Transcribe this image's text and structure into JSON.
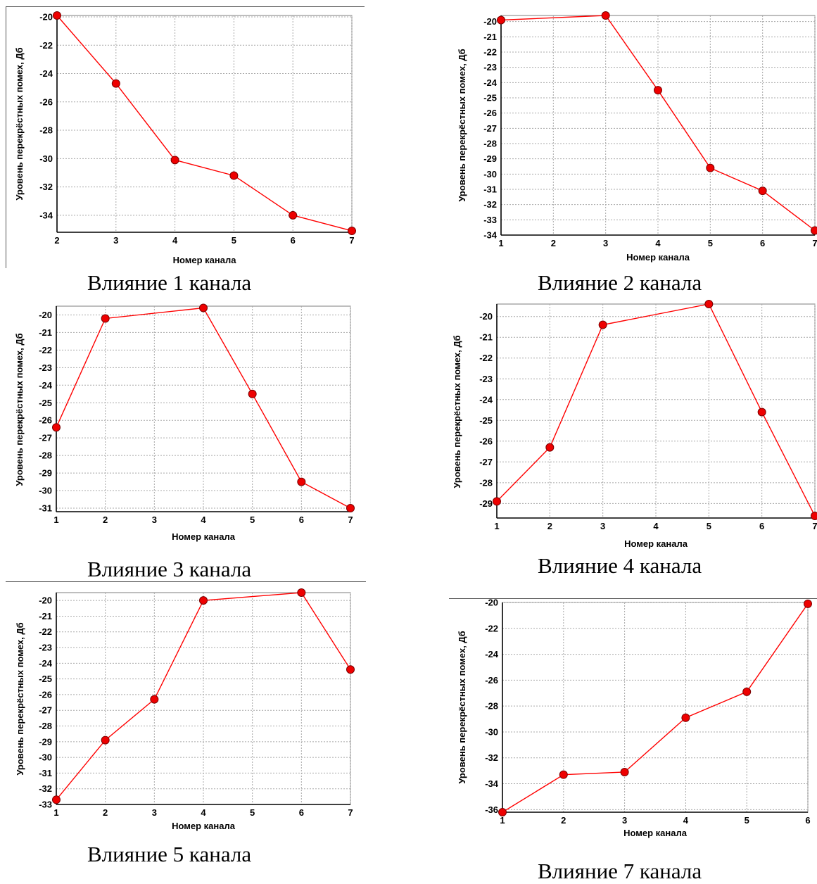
{
  "captions": [
    "Влияние 1 канала",
    "Влияние 2 канала",
    "Влияние 3 канала",
    "Влияние 4 канала",
    "Влияние 5 канала",
    "Влияние 7 канала"
  ],
  "chart_data": [
    {
      "type": "line",
      "xlabel": "Номер канала",
      "ylabel": "Уровень перекрёстных помех, Дб",
      "x": [
        2,
        3,
        4,
        5,
        6,
        7
      ],
      "series": [
        {
          "values": [
            -19.9,
            -24.7,
            -30.1,
            -31.2,
            -34.0,
            -35.1
          ]
        }
      ],
      "xlim": [
        2,
        7
      ],
      "ylim": [
        -35.2,
        -19.9
      ],
      "yticks": [
        -20,
        -22,
        -24,
        -26,
        -28,
        -30,
        -32,
        -34
      ],
      "xticks": [
        2,
        3,
        4,
        5,
        6,
        7
      ],
      "grid": true,
      "series_color": "#ff0000"
    },
    {
      "type": "line",
      "xlabel": "Номер канала",
      "ylabel": "Уровень перекрёстных помех, Дб",
      "x": [
        1,
        3,
        4,
        5,
        6,
        7
      ],
      "series": [
        {
          "values": [
            -19.9,
            -19.6,
            -24.5,
            -29.6,
            -31.1,
            -33.7
          ]
        }
      ],
      "xlim": [
        1,
        7
      ],
      "ylim": [
        -34.0,
        -19.6
      ],
      "yticks": [
        -20,
        -21,
        -22,
        -23,
        -24,
        -25,
        -26,
        -27,
        -28,
        -29,
        -30,
        -31,
        -32,
        -33,
        -34
      ],
      "xticks": [
        1,
        2,
        3,
        4,
        5,
        6,
        7
      ],
      "grid": true,
      "series_color": "#ff0000"
    },
    {
      "type": "line",
      "xlabel": "Номер канала",
      "ylabel": "Уровень перекрёстных помех, Дб",
      "x": [
        1,
        2,
        4,
        5,
        6,
        7
      ],
      "series": [
        {
          "values": [
            -26.4,
            -20.2,
            -19.6,
            -24.5,
            -29.5,
            -31.0
          ]
        }
      ],
      "xlim": [
        1,
        7
      ],
      "ylim": [
        -31.2,
        -19.5
      ],
      "yticks": [
        -20,
        -21,
        -22,
        -23,
        -24,
        -25,
        -26,
        -27,
        -28,
        -29,
        -30,
        -31
      ],
      "xticks": [
        1,
        2,
        3,
        4,
        5,
        6,
        7
      ],
      "grid": true,
      "series_color": "#ff0000"
    },
    {
      "type": "line",
      "xlabel": "Номер канала",
      "ylabel": "Уровень перекрёстных помех, Дб",
      "x": [
        1,
        2,
        3,
        5,
        6,
        7
      ],
      "series": [
        {
          "values": [
            -28.9,
            -26.3,
            -20.4,
            -19.4,
            -24.6,
            -29.6
          ]
        }
      ],
      "xlim": [
        1,
        7
      ],
      "ylim": [
        -29.7,
        -19.4
      ],
      "yticks": [
        -20,
        -21,
        -22,
        -23,
        -24,
        -25,
        -26,
        -27,
        -28,
        -29
      ],
      "xticks": [
        1,
        2,
        3,
        4,
        5,
        6,
        7
      ],
      "grid": true,
      "series_color": "#ff0000"
    },
    {
      "type": "line",
      "xlabel": "Номер канала",
      "ylabel": "Уровень перекрёстных помех, Дб",
      "x": [
        1,
        2,
        3,
        4,
        6,
        7
      ],
      "series": [
        {
          "values": [
            -32.7,
            -28.9,
            -26.3,
            -20.0,
            -19.5,
            -24.4
          ]
        }
      ],
      "xlim": [
        1,
        7
      ],
      "ylim": [
        -33.0,
        -19.5
      ],
      "yticks": [
        -20,
        -21,
        -22,
        -23,
        -24,
        -25,
        -26,
        -27,
        -28,
        -29,
        -30,
        -31,
        -32,
        -33
      ],
      "xticks": [
        1,
        2,
        3,
        4,
        5,
        6,
        7
      ],
      "grid": true,
      "series_color": "#ff0000"
    },
    {
      "type": "line",
      "xlabel": "Номер канала",
      "ylabel": "Уровень перекрёстных помех, Дб",
      "x": [
        1,
        2,
        3,
        4,
        5,
        6
      ],
      "series": [
        {
          "values": [
            -36.2,
            -33.3,
            -33.1,
            -28.9,
            -26.9,
            -20.1
          ]
        }
      ],
      "xlim": [
        1,
        6
      ],
      "ylim": [
        -36.2,
        -20.0
      ],
      "yticks": [
        -20,
        -22,
        -24,
        -26,
        -28,
        -30,
        -32,
        -34,
        -36
      ],
      "xticks": [
        1,
        2,
        3,
        4,
        5,
        6
      ],
      "grid": true,
      "series_color": "#ff0000"
    }
  ]
}
